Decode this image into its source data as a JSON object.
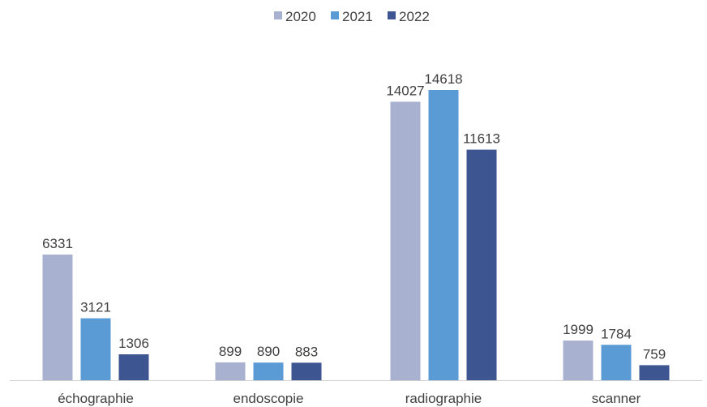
{
  "chart_data": {
    "type": "bar",
    "categories": [
      "échographie",
      "endoscopie",
      "radiographie",
      "scanner"
    ],
    "series": [
      {
        "name": "2020",
        "color": "#a9b1d0",
        "values": [
          6331,
          899,
          14027,
          1999
        ]
      },
      {
        "name": "2021",
        "color": "#5b9bd5",
        "values": [
          3121,
          890,
          14618,
          1784
        ]
      },
      {
        "name": "2022",
        "color": "#3d5591",
        "values": [
          1306,
          883,
          11613,
          759
        ]
      }
    ],
    "ylim": [
      0,
      16000
    ],
    "grid": false,
    "legend_position": "top-center",
    "data_labels": true
  }
}
